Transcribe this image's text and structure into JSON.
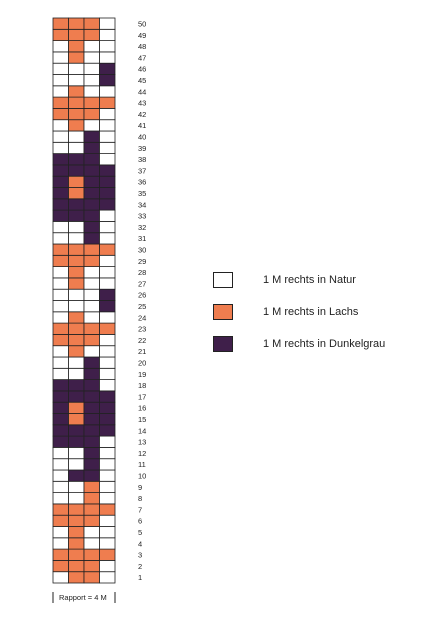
{
  "colors": {
    "natur": "#ffffff",
    "lachs": "#ef7d4f",
    "dunkelgrau": "#3f1f4a",
    "grid": "#222222"
  },
  "chart": {
    "columns": 4,
    "rows": [
      "NLLN",
      "LLLN",
      "LLLL",
      "NLNN",
      "NLNN",
      "LLLN",
      "LLLL",
      "NNLN",
      "NNLN",
      "NDDN",
      "NNDN",
      "NNDN",
      "DDDN",
      "DDDD",
      "DLDD",
      "DLDD",
      "DDDD",
      "DDDN",
      "NNDN",
      "NNDN",
      "NLNN",
      "LLLN",
      "LLLL",
      "NLNN",
      "NNND",
      "NNND",
      "NLNN",
      "NLNN",
      "LLLN",
      "LLLL",
      "NNDN",
      "NNDN",
      "DDDN",
      "DDDD",
      "DLDD",
      "DLDD",
      "DDDD",
      "DDDN",
      "NNDN",
      "NNDN",
      "NLNN",
      "LLLN",
      "LLLL",
      "NLNN",
      "NNND",
      "NNND",
      "NLNN",
      "NLNN",
      "LLLN",
      "LLLN"
    ],
    "row_numbers": [
      "1",
      "2",
      "3",
      "4",
      "5",
      "6",
      "7",
      "8",
      "9",
      "10",
      "11",
      "12",
      "13",
      "14",
      "15",
      "16",
      "17",
      "18",
      "19",
      "20",
      "21",
      "22",
      "23",
      "24",
      "25",
      "26",
      "27",
      "28",
      "29",
      "30",
      "31",
      "32",
      "33",
      "34",
      "35",
      "36",
      "37",
      "38",
      "39",
      "40",
      "41",
      "42",
      "43",
      "44",
      "45",
      "46",
      "47",
      "48",
      "49",
      "50"
    ],
    "rapport_label": "Rapport = 4 M"
  },
  "legend": [
    {
      "key": "natur",
      "label": "1 M rechts in Natur"
    },
    {
      "key": "lachs",
      "label": "1 M rechts in Lachs"
    },
    {
      "key": "dunkelgrau",
      "label": "1 M rechts in Dunkelgrau"
    }
  ]
}
